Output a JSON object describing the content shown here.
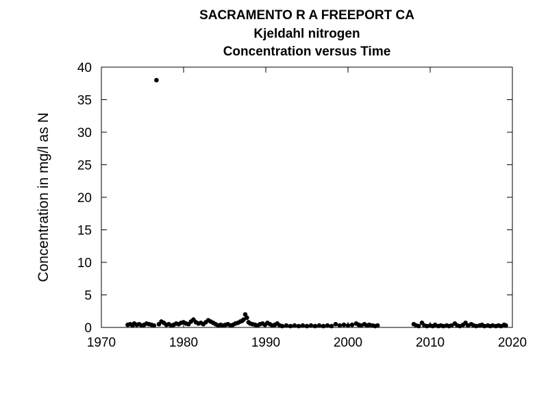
{
  "chart_data": {
    "type": "scatter",
    "title": "SACRAMENTO R A FREEPORT CA",
    "subtitle": "Kjeldahl nitrogen",
    "subtitle2": "Concentration versus Time",
    "xlabel": "",
    "ylabel": "Concentration in mg/l as N",
    "xlim": [
      1970,
      2020
    ],
    "ylim": [
      0,
      40
    ],
    "xticks": [
      1970,
      1980,
      1990,
      2000,
      2010,
      2020
    ],
    "yticks": [
      0,
      5,
      10,
      15,
      20,
      25,
      30,
      35,
      40
    ],
    "grid": false,
    "marker_color": "#000000",
    "points": [
      [
        1973.2,
        0.4
      ],
      [
        1973.5,
        0.5
      ],
      [
        1973.8,
        0.3
      ],
      [
        1974.0,
        0.6
      ],
      [
        1974.3,
        0.4
      ],
      [
        1974.6,
        0.5
      ],
      [
        1974.9,
        0.3
      ],
      [
        1975.2,
        0.4
      ],
      [
        1975.5,
        0.6
      ],
      [
        1975.8,
        0.5
      ],
      [
        1976.1,
        0.4
      ],
      [
        1976.4,
        0.3
      ],
      [
        1976.7,
        38.0
      ],
      [
        1977.0,
        0.5
      ],
      [
        1977.3,
        0.9
      ],
      [
        1977.6,
        0.7
      ],
      [
        1977.9,
        0.4
      ],
      [
        1978.2,
        0.5
      ],
      [
        1978.5,
        0.3
      ],
      [
        1978.8,
        0.4
      ],
      [
        1979.1,
        0.6
      ],
      [
        1979.4,
        0.5
      ],
      [
        1979.7,
        0.7
      ],
      [
        1980.0,
        0.8
      ],
      [
        1980.3,
        0.6
      ],
      [
        1980.6,
        0.5
      ],
      [
        1980.9,
        0.9
      ],
      [
        1981.2,
        1.2
      ],
      [
        1981.5,
        0.8
      ],
      [
        1981.8,
        0.6
      ],
      [
        1982.1,
        0.7
      ],
      [
        1982.4,
        0.5
      ],
      [
        1982.7,
        0.8
      ],
      [
        1983.0,
        1.1
      ],
      [
        1983.3,
        0.9
      ],
      [
        1983.6,
        0.7
      ],
      [
        1983.9,
        0.5
      ],
      [
        1984.2,
        0.3
      ],
      [
        1984.5,
        0.4
      ],
      [
        1984.8,
        0.3
      ],
      [
        1985.1,
        0.4
      ],
      [
        1985.4,
        0.5
      ],
      [
        1985.7,
        0.3
      ],
      [
        1986.0,
        0.4
      ],
      [
        1986.3,
        0.6
      ],
      [
        1986.6,
        0.7
      ],
      [
        1986.9,
        0.9
      ],
      [
        1987.1,
        1.0
      ],
      [
        1987.3,
        1.2
      ],
      [
        1987.5,
        2.0
      ],
      [
        1987.7,
        1.5
      ],
      [
        1987.9,
        0.8
      ],
      [
        1988.1,
        0.6
      ],
      [
        1988.4,
        0.5
      ],
      [
        1988.7,
        0.4
      ],
      [
        1989.0,
        0.3
      ],
      [
        1989.3,
        0.5
      ],
      [
        1989.6,
        0.6
      ],
      [
        1989.9,
        0.4
      ],
      [
        1990.2,
        0.7
      ],
      [
        1990.5,
        0.5
      ],
      [
        1990.8,
        0.3
      ],
      [
        1991.1,
        0.4
      ],
      [
        1991.4,
        0.6
      ],
      [
        1991.7,
        0.3
      ],
      [
        1992.0,
        0.2
      ],
      [
        1992.5,
        0.3
      ],
      [
        1993.0,
        0.2
      ],
      [
        1993.5,
        0.3
      ],
      [
        1994.0,
        0.2
      ],
      [
        1994.5,
        0.3
      ],
      [
        1995.0,
        0.2
      ],
      [
        1995.5,
        0.3
      ],
      [
        1996.0,
        0.2
      ],
      [
        1996.5,
        0.3
      ],
      [
        1997.0,
        0.2
      ],
      [
        1997.5,
        0.3
      ],
      [
        1998.0,
        0.2
      ],
      [
        1998.5,
        0.5
      ],
      [
        1999.0,
        0.3
      ],
      [
        1999.5,
        0.4
      ],
      [
        2000.0,
        0.3
      ],
      [
        2000.5,
        0.4
      ],
      [
        2001.0,
        0.6
      ],
      [
        2001.3,
        0.4
      ],
      [
        2001.6,
        0.3
      ],
      [
        2002.0,
        0.5
      ],
      [
        2002.3,
        0.3
      ],
      [
        2002.6,
        0.4
      ],
      [
        2003.0,
        0.3
      ],
      [
        2003.3,
        0.2
      ],
      [
        2003.6,
        0.3
      ],
      [
        2008.0,
        0.5
      ],
      [
        2008.3,
        0.3
      ],
      [
        2008.6,
        0.2
      ],
      [
        2009.0,
        0.7
      ],
      [
        2009.3,
        0.3
      ],
      [
        2009.6,
        0.2
      ],
      [
        2010.0,
        0.3
      ],
      [
        2010.3,
        0.2
      ],
      [
        2010.6,
        0.4
      ],
      [
        2011.0,
        0.2
      ],
      [
        2011.3,
        0.3
      ],
      [
        2011.6,
        0.2
      ],
      [
        2012.0,
        0.3
      ],
      [
        2012.3,
        0.2
      ],
      [
        2012.6,
        0.3
      ],
      [
        2013.0,
        0.6
      ],
      [
        2013.3,
        0.3
      ],
      [
        2013.6,
        0.2
      ],
      [
        2014.0,
        0.4
      ],
      [
        2014.3,
        0.7
      ],
      [
        2014.6,
        0.3
      ],
      [
        2015.0,
        0.5
      ],
      [
        2015.3,
        0.3
      ],
      [
        2015.6,
        0.2
      ],
      [
        2016.0,
        0.3
      ],
      [
        2016.3,
        0.4
      ],
      [
        2016.6,
        0.2
      ],
      [
        2017.0,
        0.3
      ],
      [
        2017.3,
        0.2
      ],
      [
        2017.6,
        0.3
      ],
      [
        2018.0,
        0.2
      ],
      [
        2018.3,
        0.3
      ],
      [
        2018.6,
        0.2
      ],
      [
        2019.0,
        0.4
      ],
      [
        2019.2,
        0.3
      ]
    ]
  }
}
